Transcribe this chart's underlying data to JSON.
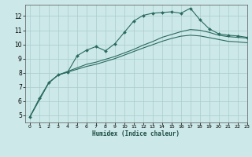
{
  "title": "",
  "xlabel": "Humidex (Indice chaleur)",
  "bg_color": "#cce8e8",
  "grid_color": "#aacccc",
  "line_color": "#2a6b5e",
  "xlim": [
    -0.5,
    23
  ],
  "ylim": [
    4.5,
    12.8
  ],
  "xticks": [
    0,
    1,
    2,
    3,
    4,
    5,
    6,
    7,
    8,
    9,
    10,
    11,
    12,
    13,
    14,
    15,
    16,
    17,
    18,
    19,
    20,
    21,
    22,
    23
  ],
  "yticks": [
    5,
    6,
    7,
    8,
    9,
    10,
    11,
    12
  ],
  "line1_x": [
    0,
    1,
    2,
    3,
    4,
    5,
    6,
    7,
    8,
    9,
    10,
    11,
    12,
    13,
    14,
    15,
    16,
    17,
    18,
    19,
    20,
    21,
    22,
    23
  ],
  "line1_y": [
    4.9,
    6.2,
    7.3,
    7.85,
    8.05,
    9.2,
    9.6,
    9.85,
    9.55,
    10.05,
    10.85,
    11.65,
    12.05,
    12.2,
    12.25,
    12.3,
    12.2,
    12.55,
    11.75,
    11.1,
    10.75,
    10.65,
    10.6,
    10.5
  ],
  "line2_x": [
    0,
    2,
    3,
    4,
    5,
    6,
    7,
    8,
    9,
    10,
    11,
    12,
    13,
    14,
    15,
    16,
    17,
    18,
    19,
    20,
    21,
    22,
    23
  ],
  "line2_y": [
    4.9,
    7.3,
    7.85,
    8.1,
    8.35,
    8.6,
    8.75,
    8.95,
    9.15,
    9.4,
    9.65,
    9.95,
    10.2,
    10.5,
    10.7,
    10.9,
    11.05,
    11.0,
    10.85,
    10.65,
    10.55,
    10.5,
    10.45
  ],
  "line3_x": [
    0,
    2,
    3,
    4,
    5,
    6,
    7,
    8,
    9,
    10,
    11,
    12,
    13,
    14,
    15,
    16,
    17,
    18,
    19,
    20,
    21,
    22,
    23
  ],
  "line3_y": [
    4.9,
    7.3,
    7.85,
    8.05,
    8.25,
    8.45,
    8.6,
    8.8,
    9.0,
    9.25,
    9.5,
    9.75,
    9.98,
    10.22,
    10.42,
    10.58,
    10.65,
    10.6,
    10.48,
    10.35,
    10.22,
    10.18,
    10.12
  ]
}
